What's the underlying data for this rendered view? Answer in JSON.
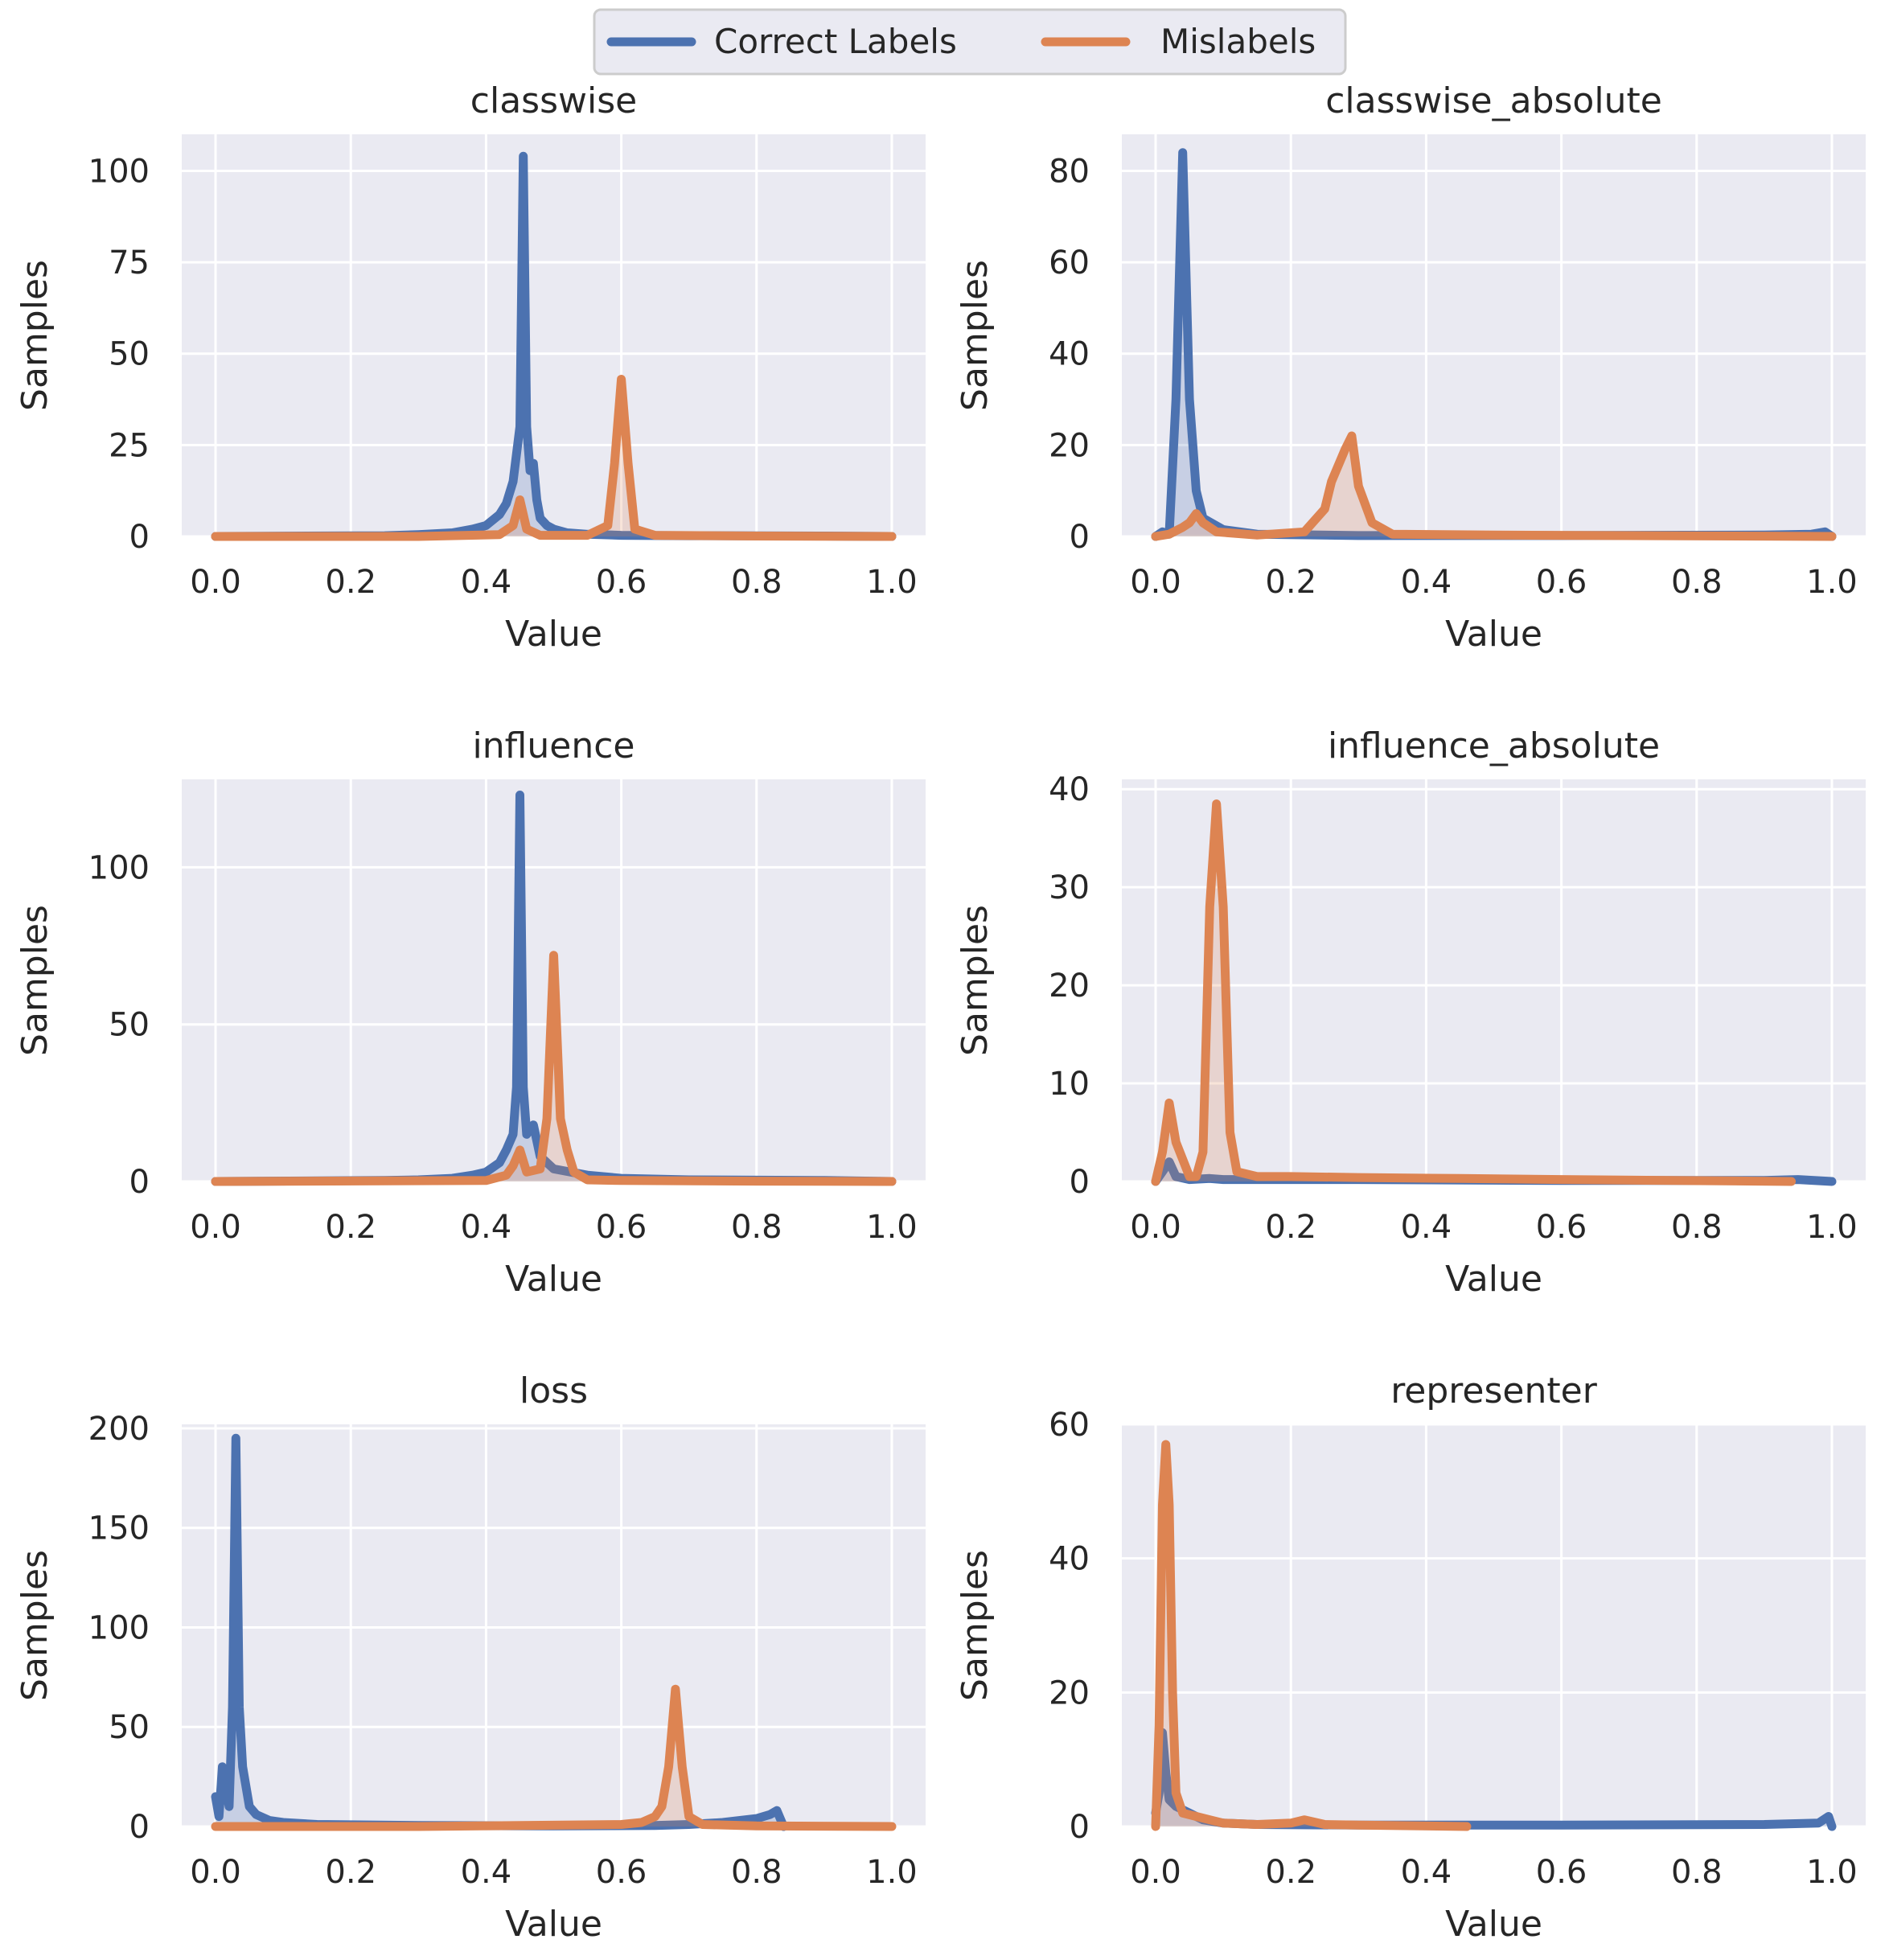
{
  "colors": {
    "correct": "#4c72b0",
    "mislabel": "#dd8452",
    "axes_bg": "#eaeaf2",
    "grid": "#ffffff",
    "text": "#262626"
  },
  "legend": {
    "correct_label": "Correct Labels",
    "mislabel_label": "Mislabels",
    "placement": "top-center"
  },
  "chart_data": [
    {
      "type": "area",
      "title": "classwise",
      "xlabel": "Value",
      "ylabel": "Samples",
      "xlim": [
        -0.05,
        1.05
      ],
      "ylim": [
        0,
        110
      ],
      "xticks": [
        "0.0",
        "0.2",
        "0.4",
        "0.6",
        "0.8",
        "1.0"
      ],
      "yticks": [
        "0",
        "25",
        "50",
        "75",
        "100"
      ],
      "ytick_values": [
        0,
        25,
        50,
        75,
        100
      ],
      "series": [
        {
          "name": "Correct Labels",
          "x": [
            0.0,
            0.25,
            0.3,
            0.35,
            0.38,
            0.4,
            0.42,
            0.43,
            0.44,
            0.45,
            0.455,
            0.46,
            0.465,
            0.47,
            0.475,
            0.48,
            0.49,
            0.5,
            0.52,
            0.55,
            0.6,
            0.7,
            0.9,
            1.0
          ],
          "y": [
            0,
            0.2,
            0.5,
            1,
            2,
            3,
            6,
            9,
            15,
            30,
            104,
            30,
            18,
            20,
            10,
            5,
            3,
            2,
            1,
            0.6,
            0.3,
            0.2,
            0.1,
            0
          ]
        },
        {
          "name": "Mislabels",
          "x": [
            0.0,
            0.3,
            0.42,
            0.44,
            0.45,
            0.46,
            0.48,
            0.55,
            0.58,
            0.59,
            0.6,
            0.61,
            0.62,
            0.65,
            0.8,
            1.0
          ],
          "y": [
            0,
            0,
            0.5,
            3,
            10,
            2,
            0.3,
            0.3,
            3,
            20,
            43,
            20,
            2,
            0.3,
            0.1,
            0
          ]
        }
      ]
    },
    {
      "type": "area",
      "title": "classwise_absolute",
      "xlabel": "Value",
      "ylabel": "Samples",
      "xlim": [
        -0.05,
        1.05
      ],
      "ylim": [
        0,
        88
      ],
      "xticks": [
        "0.0",
        "0.2",
        "0.4",
        "0.6",
        "0.8",
        "1.0"
      ],
      "yticks": [
        "0",
        "20",
        "40",
        "60",
        "80"
      ],
      "ytick_values": [
        0,
        20,
        40,
        60,
        80
      ],
      "series": [
        {
          "name": "Correct Labels",
          "x": [
            0.0,
            0.01,
            0.02,
            0.03,
            0.04,
            0.05,
            0.06,
            0.07,
            0.1,
            0.15,
            0.3,
            0.6,
            0.9,
            0.97,
            0.99,
            1.0
          ],
          "y": [
            0,
            1,
            0.5,
            30,
            84,
            30,
            10,
            4,
            1.5,
            0.5,
            0.2,
            0.2,
            0.3,
            0.5,
            1,
            0
          ]
        },
        {
          "name": "Mislabels",
          "x": [
            0.0,
            0.02,
            0.04,
            0.05,
            0.06,
            0.07,
            0.09,
            0.15,
            0.22,
            0.25,
            0.26,
            0.28,
            0.29,
            0.3,
            0.32,
            0.35,
            0.5,
            1.0
          ],
          "y": [
            0,
            0.5,
            2,
            3,
            5,
            3,
            1,
            0.3,
            1,
            6,
            12,
            19,
            22,
            11,
            3,
            0.5,
            0.3,
            0
          ]
        }
      ]
    },
    {
      "type": "area",
      "title": "influence",
      "xlabel": "Value",
      "ylabel": "Samples",
      "xlim": [
        -0.05,
        1.05
      ],
      "ylim": [
        0,
        128
      ],
      "xticks": [
        "0.0",
        "0.2",
        "0.4",
        "0.6",
        "0.8",
        "1.0"
      ],
      "yticks": [
        "0",
        "50",
        "100"
      ],
      "ytick_values": [
        0,
        50,
        100
      ],
      "series": [
        {
          "name": "Correct Labels",
          "x": [
            0.0,
            0.25,
            0.3,
            0.35,
            0.38,
            0.4,
            0.42,
            0.43,
            0.44,
            0.445,
            0.45,
            0.455,
            0.46,
            0.47,
            0.48,
            0.5,
            0.55,
            0.6,
            0.7,
            0.9,
            1.0
          ],
          "y": [
            0,
            0.3,
            0.5,
            1,
            2,
            3,
            6,
            10,
            15,
            30,
            123,
            30,
            15,
            18,
            8,
            4,
            2,
            1,
            0.5,
            0.3,
            0
          ]
        },
        {
          "name": "Mislabels",
          "x": [
            0.0,
            0.4,
            0.43,
            0.44,
            0.45,
            0.46,
            0.48,
            0.49,
            0.5,
            0.51,
            0.52,
            0.53,
            0.55,
            0.6,
            0.8,
            1.0
          ],
          "y": [
            0,
            0.3,
            2,
            5,
            10,
            3,
            4,
            20,
            72,
            20,
            10,
            3,
            0.5,
            0.3,
            0.1,
            0
          ]
        }
      ]
    },
    {
      "type": "area",
      "title": "influence_absolute",
      "xlabel": "Value",
      "ylabel": "Samples",
      "xlim": [
        -0.05,
        1.05
      ],
      "ylim": [
        0,
        41
      ],
      "xticks": [
        "0.0",
        "0.2",
        "0.4",
        "0.6",
        "0.8",
        "1.0"
      ],
      "yticks": [
        "0",
        "10",
        "20",
        "30",
        "40"
      ],
      "ytick_values": [
        0,
        10,
        20,
        30,
        40
      ],
      "series": [
        {
          "name": "Correct Labels",
          "x": [
            0.0,
            0.01,
            0.02,
            0.03,
            0.05,
            0.08,
            0.1,
            0.15,
            0.3,
            0.6,
            0.9,
            0.95,
            1.0
          ],
          "y": [
            0,
            1,
            2,
            0.5,
            0.2,
            0.3,
            0.2,
            0.2,
            0.2,
            0.1,
            0.1,
            0.2,
            0
          ]
        },
        {
          "name": "Mislabels",
          "x": [
            0.0,
            0.01,
            0.02,
            0.03,
            0.05,
            0.06,
            0.07,
            0.08,
            0.09,
            0.1,
            0.11,
            0.12,
            0.15,
            0.2,
            0.3,
            0.45,
            0.6,
            0.94
          ],
          "y": [
            0,
            3,
            8,
            4,
            0.5,
            0.5,
            3,
            28,
            38.5,
            28,
            5,
            1,
            0.5,
            0.5,
            0.4,
            0.3,
            0.2,
            0
          ]
        }
      ]
    },
    {
      "type": "area",
      "title": "loss",
      "xlabel": "Value",
      "ylabel": "Samples",
      "xlim": [
        -0.05,
        1.05
      ],
      "ylim": [
        0,
        202
      ],
      "xticks": [
        "0.0",
        "0.2",
        "0.4",
        "0.6",
        "0.8",
        "1.0"
      ],
      "yticks": [
        "0",
        "50",
        "100",
        "150",
        "200"
      ],
      "ytick_values": [
        0,
        50,
        100,
        150,
        200
      ],
      "series": [
        {
          "name": "Correct Labels",
          "x": [
            0.0,
            0.005,
            0.01,
            0.015,
            0.02,
            0.025,
            0.03,
            0.035,
            0.04,
            0.05,
            0.06,
            0.08,
            0.1,
            0.15,
            0.3,
            0.5,
            0.65,
            0.7,
            0.75,
            0.8,
            0.82,
            0.83,
            0.84
          ],
          "y": [
            15,
            5,
            30,
            20,
            10,
            60,
            195,
            60,
            30,
            10,
            6,
            3,
            2,
            1,
            0.5,
            0.3,
            0.5,
            1,
            2,
            4,
            6,
            8,
            0
          ]
        },
        {
          "name": "Mislabels",
          "x": [
            0.0,
            0.3,
            0.6,
            0.63,
            0.65,
            0.66,
            0.67,
            0.68,
            0.69,
            0.7,
            0.72,
            0.8,
            1.0
          ],
          "y": [
            0,
            0,
            1,
            2,
            5,
            10,
            30,
            69,
            30,
            5,
            1,
            0.3,
            0
          ]
        }
      ]
    },
    {
      "type": "area",
      "title": "representer",
      "xlabel": "Value",
      "ylabel": "Samples",
      "xlim": [
        -0.05,
        1.05
      ],
      "ylim": [
        0,
        60
      ],
      "xticks": [
        "0.0",
        "0.2",
        "0.4",
        "0.6",
        "0.8",
        "1.0"
      ],
      "yticks": [
        "0",
        "20",
        "40",
        "60"
      ],
      "ytick_values": [
        0,
        20,
        40,
        60
      ],
      "series": [
        {
          "name": "Correct Labels",
          "x": [
            0.0,
            0.005,
            0.01,
            0.015,
            0.02,
            0.03,
            0.05,
            0.07,
            0.1,
            0.15,
            0.3,
            0.6,
            0.9,
            0.98,
            0.995,
            1.0
          ],
          "y": [
            2,
            5,
            14,
            8,
            4,
            3,
            2,
            1,
            0.5,
            0.3,
            0.2,
            0.2,
            0.3,
            0.5,
            1.5,
            0
          ]
        },
        {
          "name": "Mislabels",
          "x": [
            0.0,
            0.005,
            0.01,
            0.015,
            0.02,
            0.025,
            0.03,
            0.04,
            0.06,
            0.08,
            0.1,
            0.15,
            0.2,
            0.22,
            0.25,
            0.3,
            0.46
          ],
          "y": [
            0,
            15,
            48,
            57,
            48,
            20,
            5,
            2,
            1.5,
            1,
            0.5,
            0.3,
            0.5,
            1,
            0.3,
            0.2,
            0
          ]
        }
      ]
    }
  ]
}
